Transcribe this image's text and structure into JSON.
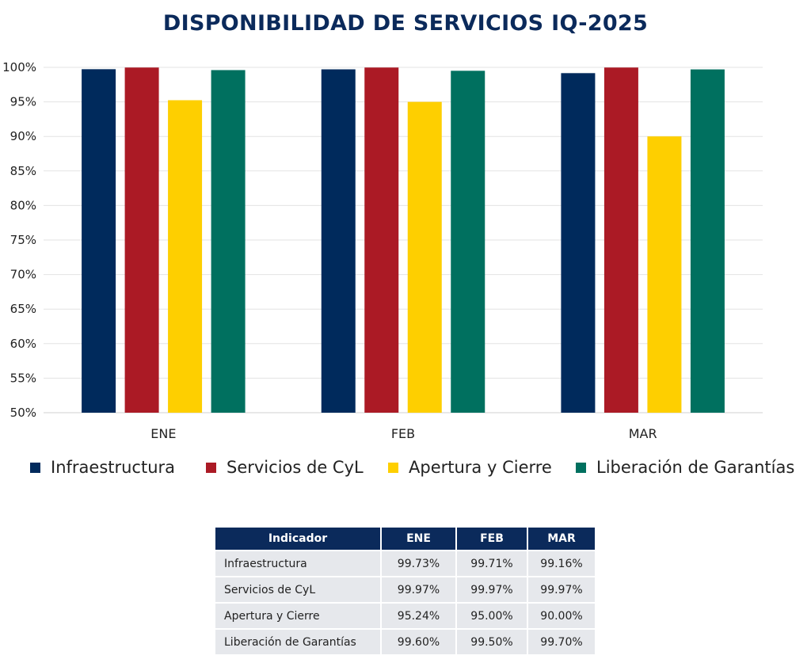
{
  "title": "DISPONIBILIDAD DE SERVICIOS IQ-2025",
  "colors": {
    "title": "#0b2a5b",
    "series": [
      "#002a5c",
      "#ab1a25",
      "#fecf00",
      "#00705f"
    ],
    "grid": "#e3e3e3",
    "table_header": "#0b2a5b",
    "table_cell": "#e6e8ec"
  },
  "chart_data": {
    "type": "bar",
    "title": "DISPONIBILIDAD DE SERVICIOS IQ-2025",
    "xlabel": "",
    "ylabel": "",
    "categories": [
      "ENE",
      "FEB",
      "MAR"
    ],
    "ylim": [
      50,
      100
    ],
    "y_ticks": [
      "50%",
      "55%",
      "60%",
      "65%",
      "70%",
      "75%",
      "80%",
      "85%",
      "90%",
      "95%",
      "100%"
    ],
    "grid": true,
    "legend_position": "bottom",
    "series": [
      {
        "name": "Infraestructura",
        "values": [
          99.73,
          99.71,
          99.16
        ]
      },
      {
        "name": "Servicios de CyL",
        "values": [
          99.97,
          99.97,
          99.97
        ]
      },
      {
        "name": "Apertura y Cierre",
        "values": [
          95.24,
          95.0,
          90.0
        ]
      },
      {
        "name": "Liberación de Garantías",
        "values": [
          99.6,
          99.5,
          99.7
        ]
      }
    ]
  },
  "table": {
    "headers": [
      "Indicador",
      "ENE",
      "FEB",
      "MAR"
    ],
    "rows": [
      [
        "Infraestructura",
        "99.73%",
        "99.71%",
        "99.16%"
      ],
      [
        "Servicios de CyL",
        "99.97%",
        "99.97%",
        "99.97%"
      ],
      [
        "Apertura y Cierre",
        "95.24%",
        "95.00%",
        "90.00%"
      ],
      [
        "Liberación de Garantías",
        "99.60%",
        "99.50%",
        "99.70%"
      ]
    ]
  }
}
